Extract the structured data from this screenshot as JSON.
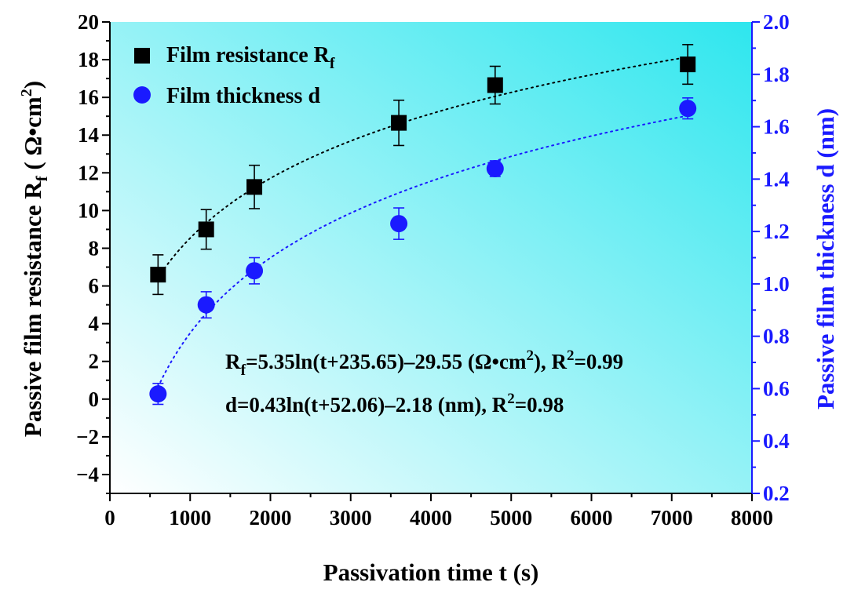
{
  "chart_data": {
    "type": "scatter",
    "xlabel": "Passivation time t (s)",
    "ylabel_left": {
      "main": "Passive film resistance R",
      "sub": "f",
      "unit_open": " ( Ω•cm",
      "unit_sup": "2",
      "unit_close": ")"
    },
    "ylabel_right": "Passive film thickness d (nm)",
    "xlim": [
      0,
      8000
    ],
    "ylim_left": [
      -5,
      20
    ],
    "ylim_right": [
      0.2,
      2.0
    ],
    "x_ticks": [
      "0",
      "1000",
      "2000",
      "3000",
      "4000",
      "5000",
      "6000",
      "7000",
      "8000"
    ],
    "y_left_ticks": [
      "−4",
      "−2",
      "0",
      "2",
      "4",
      "6",
      "8",
      "10",
      "12",
      "14",
      "16",
      "18",
      "20"
    ],
    "y_right_ticks": [
      "0.2",
      "0.4",
      "0.6",
      "0.8",
      "1.0",
      "1.2",
      "1.4",
      "1.6",
      "1.8",
      "2.0"
    ],
    "series": [
      {
        "name": "Film resistance R",
        "name_sub": "f",
        "axis": "left",
        "marker": "square",
        "color": "#000000",
        "x": [
          600,
          1200,
          1800,
          3600,
          4800,
          7200
        ],
        "y": [
          6.6,
          9.0,
          11.25,
          14.65,
          16.65,
          17.75
        ],
        "err": [
          1.05,
          1.05,
          1.15,
          1.2,
          1.0,
          1.05
        ],
        "fit": {
          "a": 5.35,
          "c": 235.65,
          "b": -29.55,
          "color": "#000000"
        }
      },
      {
        "name": "Film thickness d",
        "axis": "right",
        "marker": "circle",
        "color": "#1a1aff",
        "x": [
          600,
          1200,
          1800,
          3600,
          4800,
          7200
        ],
        "y": [
          0.58,
          0.92,
          1.05,
          1.23,
          1.44,
          1.67
        ],
        "err": [
          0.04,
          0.05,
          0.05,
          0.06,
          0.03,
          0.04
        ],
        "fit": {
          "a": 0.43,
          "c": 52.06,
          "b": -2.18,
          "color": "#1a1aff"
        }
      }
    ],
    "legend_position": "top-left",
    "annotations": [
      {
        "parts": [
          "R",
          "f",
          "=5.35ln(t+235.65)–29.55 (Ω•cm",
          "2",
          "), R",
          "2",
          "=0.99"
        ]
      },
      {
        "parts": [
          "d=0.43ln(t+52.06)–2.18 (nm), R",
          "2",
          "=0.98"
        ]
      }
    ],
    "background_gradient": [
      "#ffffff",
      "#2ee6ee"
    ],
    "grid": false
  }
}
